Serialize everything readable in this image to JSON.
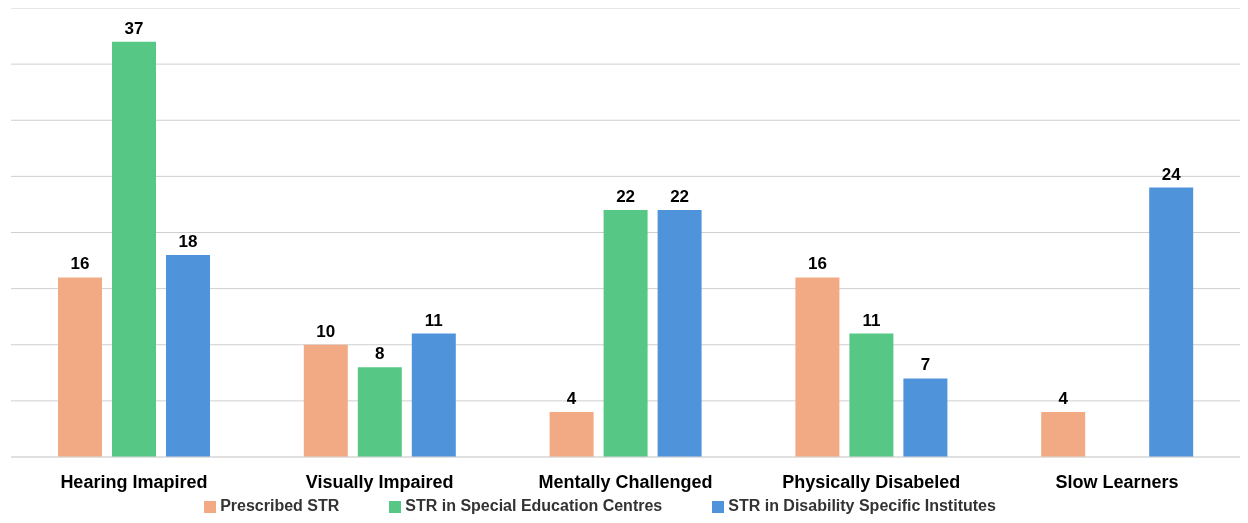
{
  "chart_data": {
    "type": "bar",
    "categories": [
      "Hearing Imapired",
      "Visually Impaired",
      "Mentally Challenged",
      "Physically Disabeled",
      "Slow Learners"
    ],
    "series": [
      {
        "name": "Prescribed STR",
        "color": "#f2aa84",
        "values": [
          16,
          10,
          4,
          16,
          4
        ]
      },
      {
        "name": "STR in Special Education Centres",
        "color": "#57c785",
        "values": [
          37,
          8,
          22,
          11,
          null
        ]
      },
      {
        "name": "STR in Disability Specific Institutes",
        "color": "#4f94db",
        "values": [
          18,
          11,
          22,
          7,
          24
        ]
      }
    ],
    "ylim": [
      0,
      40
    ],
    "tick_labels": "x",
    "grid": "y",
    "data_labels": true,
    "legend": "bottom"
  }
}
